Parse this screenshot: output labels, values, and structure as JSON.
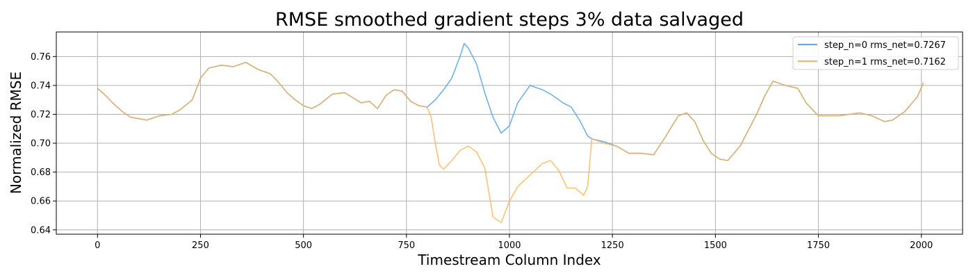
{
  "chart_data": {
    "type": "line",
    "title": "RMSE smoothed gradient steps 3% data salvaged",
    "xlabel": "Timestream Column Index",
    "ylabel": "Normalized RMSE",
    "xlim": [
      -100,
      2100
    ],
    "ylim": [
      0.637,
      0.777
    ],
    "xticks": [
      0,
      250,
      500,
      750,
      1000,
      1250,
      1500,
      1750,
      2000
    ],
    "yticks": [
      0.64,
      0.66,
      0.68,
      0.7,
      0.72,
      0.74,
      0.76
    ],
    "xtick_labels": [
      "0",
      "250",
      "500",
      "750",
      "1000",
      "1250",
      "1500",
      "1750",
      "2000"
    ],
    "ytick_labels": [
      "0.64",
      "0.66",
      "0.68",
      "0.70",
      "0.72",
      "0.74",
      "0.76"
    ],
    "grid": true,
    "legend_position": "top-right",
    "series": [
      {
        "name": "step_n=0 rms_net=0.7267",
        "color": "#5aaaf0",
        "x": [
          0,
          20,
          40,
          60,
          80,
          100,
          120,
          150,
          180,
          200,
          230,
          250,
          270,
          300,
          330,
          360,
          390,
          420,
          440,
          460,
          480,
          500,
          520,
          540,
          570,
          600,
          640,
          660,
          680,
          700,
          720,
          740,
          760,
          780,
          800,
          820,
          840,
          860,
          880,
          890,
          900,
          920,
          940,
          960,
          980,
          1000,
          1020,
          1050,
          1080,
          1100,
          1130,
          1150,
          1170,
          1190,
          1200,
          1230,
          1260,
          1290,
          1320,
          1350,
          1380,
          1410,
          1430,
          1450,
          1470,
          1490,
          1510,
          1530,
          1560,
          1600,
          1620,
          1640,
          1670,
          1700,
          1720,
          1750,
          1800,
          1850,
          1880,
          1910,
          1930,
          1960,
          1990,
          2005
        ],
        "y": [
          0.738,
          0.733,
          0.727,
          0.722,
          0.718,
          0.717,
          0.716,
          0.719,
          0.72,
          0.723,
          0.73,
          0.745,
          0.752,
          0.754,
          0.753,
          0.756,
          0.751,
          0.748,
          0.742,
          0.735,
          0.73,
          0.726,
          0.724,
          0.727,
          0.734,
          0.735,
          0.728,
          0.729,
          0.724,
          0.733,
          0.737,
          0.736,
          0.729,
          0.726,
          0.725,
          0.73,
          0.737,
          0.745,
          0.76,
          0.769,
          0.766,
          0.755,
          0.735,
          0.718,
          0.707,
          0.712,
          0.728,
          0.74,
          0.737,
          0.734,
          0.728,
          0.725,
          0.716,
          0.705,
          0.703,
          0.701,
          0.698,
          0.693,
          0.693,
          0.692,
          0.705,
          0.719,
          0.721,
          0.715,
          0.702,
          0.693,
          0.689,
          0.688,
          0.698,
          0.72,
          0.733,
          0.743,
          0.74,
          0.738,
          0.728,
          0.719,
          0.719,
          0.721,
          0.719,
          0.715,
          0.716,
          0.722,
          0.732,
          0.742
        ]
      },
      {
        "name": "step_n=1 rms_net=0.7162",
        "color": "#ffb24f",
        "x": [
          0,
          20,
          40,
          60,
          80,
          100,
          120,
          150,
          180,
          200,
          230,
          250,
          270,
          300,
          330,
          360,
          390,
          420,
          440,
          460,
          480,
          500,
          520,
          540,
          570,
          600,
          640,
          660,
          680,
          700,
          720,
          740,
          760,
          780,
          800,
          810,
          820,
          830,
          840,
          860,
          880,
          900,
          920,
          940,
          950,
          960,
          980,
          1000,
          1020,
          1050,
          1080,
          1100,
          1120,
          1140,
          1160,
          1180,
          1190,
          1200,
          1230,
          1260,
          1290,
          1320,
          1350,
          1380,
          1410,
          1430,
          1450,
          1470,
          1490,
          1510,
          1530,
          1560,
          1600,
          1620,
          1640,
          1670,
          1700,
          1720,
          1750,
          1800,
          1850,
          1880,
          1910,
          1930,
          1960,
          1990,
          2005
        ],
        "y": [
          0.738,
          0.733,
          0.727,
          0.722,
          0.718,
          0.717,
          0.716,
          0.719,
          0.72,
          0.723,
          0.73,
          0.745,
          0.752,
          0.754,
          0.753,
          0.756,
          0.751,
          0.748,
          0.742,
          0.735,
          0.73,
          0.726,
          0.724,
          0.727,
          0.734,
          0.735,
          0.728,
          0.729,
          0.724,
          0.733,
          0.737,
          0.736,
          0.729,
          0.726,
          0.725,
          0.718,
          0.7,
          0.685,
          0.682,
          0.688,
          0.695,
          0.698,
          0.694,
          0.683,
          0.666,
          0.649,
          0.645,
          0.66,
          0.67,
          0.678,
          0.686,
          0.688,
          0.681,
          0.669,
          0.669,
          0.664,
          0.67,
          0.703,
          0.7,
          0.698,
          0.693,
          0.693,
          0.692,
          0.705,
          0.719,
          0.721,
          0.715,
          0.702,
          0.693,
          0.689,
          0.688,
          0.698,
          0.72,
          0.733,
          0.743,
          0.74,
          0.738,
          0.728,
          0.719,
          0.719,
          0.721,
          0.719,
          0.715,
          0.716,
          0.722,
          0.732,
          0.742
        ]
      }
    ]
  }
}
